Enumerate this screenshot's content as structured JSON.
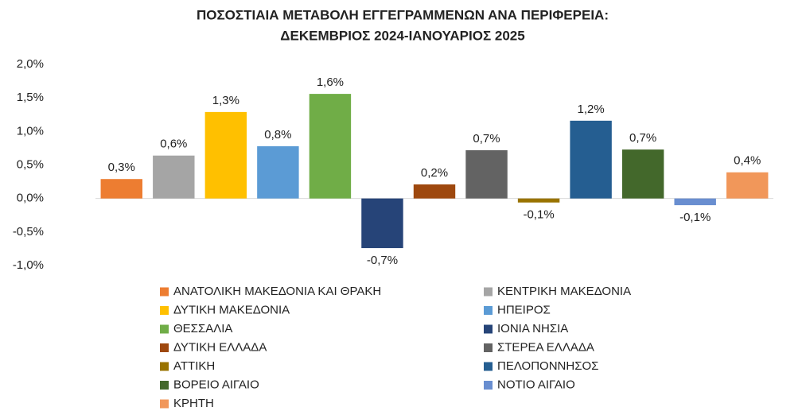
{
  "chart_data": {
    "type": "bar",
    "title": [
      "ΠΟΣΟΣΤΙΑΙΑ ΜΕΤΑΒΟΛΗ ΕΓΓΕΓΡΑΜΜΕΝΩΝ ΑΝΑ ΠΕΡΙΦΕΡΕΙΑ:",
      "ΔΕΚΕΜΒΡΙΟΣ 2024-ΙΑΝΟΥΑΡΙΟΣ 2025"
    ],
    "ylim": [
      -1,
      2
    ],
    "yticks": [
      {
        "value": 2,
        "label": "2,0%"
      },
      {
        "value": 1.5,
        "label": "1,5%"
      },
      {
        "value": 1,
        "label": "1,0%"
      },
      {
        "value": 0.5,
        "label": "0,5%"
      },
      {
        "value": 0,
        "label": "0,0%"
      },
      {
        "value": -0.5,
        "label": "-0,5%"
      },
      {
        "value": -1,
        "label": "-1,0%"
      }
    ],
    "grid": false,
    "legend": "bottom",
    "series": [
      {
        "name": "ΑΝΑΤΟΛΙΚΗ ΜΑΚΕΔΟΝΙΑ ΚΑΙ ΘΡΑΚΗ",
        "color": "#ED7D31",
        "values": [
          0.29
        ],
        "value_labels": [
          "0,3%"
        ]
      },
      {
        "name": "ΚΕΝΤΡΙΚΗ ΜΑΚΕΔΟΝΙΑ",
        "color": "#A5A5A5",
        "values": [
          0.64
        ],
        "value_labels": [
          "0,6%"
        ]
      },
      {
        "name": "ΔΥΤΙΚΗ ΜΑΚΕΔΟΝΙΑ",
        "color": "#FFC000",
        "values": [
          1.29
        ],
        "value_labels": [
          "1,3%"
        ]
      },
      {
        "name": "ΗΠΕΙΡΟΣ",
        "color": "#5B9BD5",
        "values": [
          0.78
        ],
        "value_labels": [
          "0,8%"
        ]
      },
      {
        "name": "ΘΕΣΣΑΛΙΑ",
        "color": "#70AD47",
        "values": [
          1.56
        ],
        "value_labels": [
          "1,6%"
        ]
      },
      {
        "name": "ΙΟΝΙΑ ΝΗΣΙΑ",
        "color": "#264478",
        "values": [
          -0.74
        ],
        "value_labels": [
          "-0,7%"
        ]
      },
      {
        "name": "ΔΥΤΙΚΗ ΕΛΛΑΔΑ",
        "color": "#9E480E",
        "values": [
          0.21
        ],
        "value_labels": [
          "0,2%"
        ]
      },
      {
        "name": "ΣΤΕΡΕΑ ΕΛΛΑΔΑ",
        "color": "#636363",
        "values": [
          0.72
        ],
        "value_labels": [
          "0,7%"
        ]
      },
      {
        "name": "ΑΤΤΙΚΗ",
        "color": "#997300",
        "values": [
          -0.06
        ],
        "value_labels": [
          "-0,1%"
        ]
      },
      {
        "name": "ΠΕΛΟΠΟΝΝΗΣΟΣ",
        "color": "#255E91",
        "values": [
          1.16
        ],
        "value_labels": [
          "1,2%"
        ]
      },
      {
        "name": "ΒΟΡΕΙΟ ΑΙΓΑΙΟ",
        "color": "#43682B",
        "values": [
          0.73
        ],
        "value_labels": [
          "0,7%"
        ]
      },
      {
        "name": "ΝΟΤΙΟ ΑΙΓΑΙΟ",
        "color": "#698ED0",
        "values": [
          -0.1
        ],
        "value_labels": [
          "-0,1%"
        ]
      },
      {
        "name": "ΚΡΗΤΗ",
        "color": "#F1975A",
        "values": [
          0.39
        ],
        "value_labels": [
          "0,4%"
        ]
      }
    ]
  }
}
